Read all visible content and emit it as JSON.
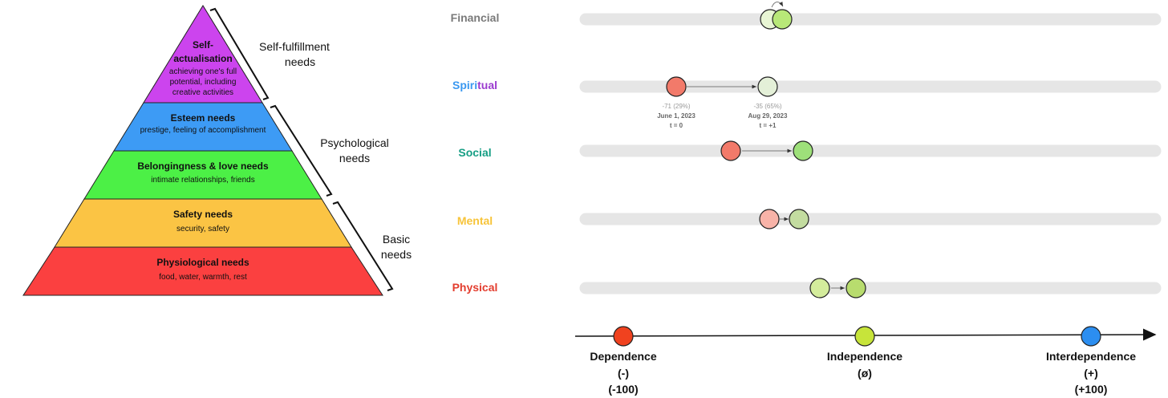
{
  "pyramid": {
    "levels": [
      {
        "title": "Self-",
        "title2": "actualisation",
        "desc": [
          "achieving one's full",
          "potential, including",
          "creative activities"
        ],
        "color": "#cc44ee"
      },
      {
        "title": "Esteem needs",
        "desc": [
          "prestige, feeling of accomplishment"
        ],
        "color": "#3d9bf5"
      },
      {
        "title": "Belongingness & love needs",
        "desc": [
          "intimate relationships, friends"
        ],
        "color": "#4cf046"
      },
      {
        "title": "Safety needs",
        "desc": [
          "security, safety"
        ],
        "color": "#fbc444"
      },
      {
        "title": "Physiological needs",
        "desc": [
          "food, water, warmth, rest"
        ],
        "color": "#fb4040"
      }
    ],
    "groups": [
      {
        "line1": "Self-fulfillment",
        "line2": "needs"
      },
      {
        "line1": "Psychological",
        "line2": "needs"
      },
      {
        "line1": "Basic",
        "line2": "needs"
      }
    ]
  },
  "dimensions": [
    {
      "label": "Financial",
      "color": "#7a7a7a"
    },
    {
      "label_a": "Spiri",
      "label_b": "tual",
      "color_a": "#3a98f0",
      "color_b": "#9b3bd0"
    },
    {
      "label": "Social",
      "color": "#169e84"
    },
    {
      "label": "Mental",
      "color": "#f7c43a"
    },
    {
      "label": "Physical",
      "color": "#e33d2e"
    }
  ],
  "annotations": {
    "start": {
      "score": "-71 (29%)",
      "date": "June 1, 2023",
      "t": "t = 0"
    },
    "end": {
      "score": "-35 (65%)",
      "date": "Aug 29, 2023",
      "t": "t = +1"
    }
  },
  "axis": {
    "points": [
      {
        "label": "Dependence",
        "symbol": "(-)",
        "value": "(-100)",
        "color": "#f0421f"
      },
      {
        "label": "Independence",
        "symbol": "(ø)",
        "value": "",
        "color": "#c7e43a"
      },
      {
        "label": "Interdependence",
        "symbol": "(+)",
        "value": "(+100)",
        "color": "#2c8ef0"
      }
    ]
  }
}
